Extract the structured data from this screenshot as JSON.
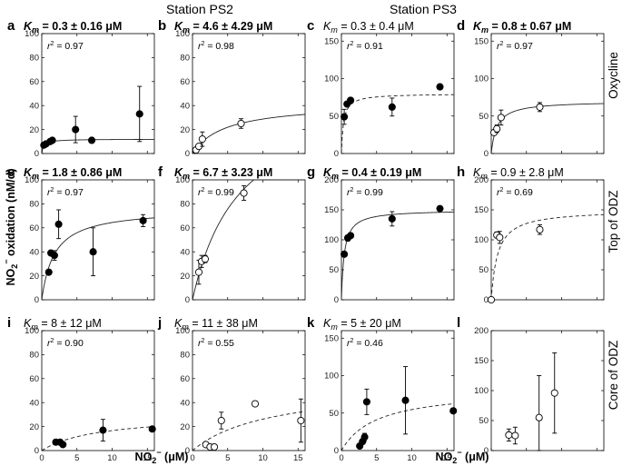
{
  "stations": [
    "Station PS2",
    "Station PS3"
  ],
  "row_labels": [
    "Oxycline",
    "Top of ODZ",
    "Core of ODZ"
  ],
  "ylabel": {
    "main": "NO",
    "sub": "2",
    "sup": "−",
    "rest": " oxidation (nM/d)"
  },
  "xlabel": {
    "main": "NO",
    "sub": "2",
    "sup": "−",
    "rest": " (μM)"
  },
  "chart_data": [
    {
      "id": "a",
      "label": "a",
      "type": "scatter",
      "km_text": "= 0.3 ± 0.16 μM",
      "km_bold": true,
      "r2": "= 0.97",
      "ylim": [
        0,
        100
      ],
      "yticks": [
        0,
        20,
        40,
        60,
        80,
        100
      ],
      "xlim": [
        0,
        16
      ],
      "xticks": [
        0,
        5,
        10,
        15
      ],
      "show_xticks": false,
      "filled": true,
      "fit": {
        "vmax": 12,
        "km": 0.3,
        "style": "solid"
      },
      "points": [
        {
          "x": 0.3,
          "y": 7
        },
        {
          "x": 0.6,
          "y": 8
        },
        {
          "x": 1.2,
          "y": 10,
          "err": 2
        },
        {
          "x": 1.5,
          "y": 11
        },
        {
          "x": 4.8,
          "y": 20,
          "err": 11
        },
        {
          "x": 7.1,
          "y": 11
        },
        {
          "x": 13.9,
          "y": 33,
          "err": 23
        }
      ]
    },
    {
      "id": "b",
      "label": "b",
      "type": "scatter",
      "km_text": "= 4.6 ± 4.29 μM",
      "km_bold": true,
      "r2": "= 0.98",
      "ylim": [
        0,
        100
      ],
      "yticks": [
        0,
        20,
        40,
        60,
        80,
        100
      ],
      "xlim": [
        0,
        16
      ],
      "xticks": [
        0,
        5,
        10,
        15
      ],
      "show_xticks": false,
      "filled": false,
      "fit": {
        "vmax": 42,
        "km": 4.6,
        "style": "solid"
      },
      "points": [
        {
          "x": 0.5,
          "y": 3
        },
        {
          "x": 0.9,
          "y": 6,
          "err": 2
        },
        {
          "x": 1.4,
          "y": 12,
          "err": 6
        },
        {
          "x": 6.9,
          "y": 25,
          "err": 4
        }
      ]
    },
    {
      "id": "c",
      "label": "c",
      "type": "scatter",
      "km_text": "= 0.3 ± 0.4 μM",
      "km_bold": false,
      "r2": "= 0.91",
      "ylim": [
        0,
        160
      ],
      "yticks": [
        0,
        50,
        100,
        150
      ],
      "xlim": [
        0,
        16
      ],
      "xticks": [
        0,
        5,
        10,
        15
      ],
      "show_xticks": false,
      "filled": true,
      "fit": {
        "vmax": 80,
        "km": 0.3,
        "style": "dashed"
      },
      "points": [
        {
          "x": 0.4,
          "y": 49,
          "err": 10
        },
        {
          "x": 0.8,
          "y": 66
        },
        {
          "x": 1.3,
          "y": 71
        },
        {
          "x": 7.2,
          "y": 62,
          "err": 12
        },
        {
          "x": 14.0,
          "y": 89
        }
      ]
    },
    {
      "id": "d",
      "label": "d",
      "type": "scatter",
      "km_text": "= 0.8 ± 0.67 μM",
      "km_bold": true,
      "r2": "= 0.97",
      "ylim": [
        0,
        160
      ],
      "yticks": [
        0,
        50,
        100,
        150
      ],
      "xlim": [
        0,
        16
      ],
      "xticks": [
        0,
        5,
        10,
        15
      ],
      "show_xticks": false,
      "filled": false,
      "fit": {
        "vmax": 70,
        "km": 0.8,
        "style": "solid"
      },
      "points": [
        {
          "x": 0.4,
          "y": 28
        },
        {
          "x": 0.8,
          "y": 33,
          "err": 5
        },
        {
          "x": 1.4,
          "y": 48,
          "err": 10
        },
        {
          "x": 6.9,
          "y": 62,
          "err": 6
        }
      ]
    },
    {
      "id": "e",
      "label": "e",
      "type": "scatter",
      "km_text": "= 1.8 ± 0.86 μM",
      "km_bold": true,
      "r2": "= 0.97",
      "ylim": [
        0,
        100
      ],
      "yticks": [
        0,
        20,
        40,
        60,
        80,
        100
      ],
      "xlim": [
        0,
        16
      ],
      "xticks": [
        0,
        5,
        10,
        15
      ],
      "show_xticks": false,
      "filled": true,
      "fit": {
        "vmax": 76,
        "km": 1.8,
        "style": "solid"
      },
      "points": [
        {
          "x": 1.0,
          "y": 23
        },
        {
          "x": 1.3,
          "y": 39
        },
        {
          "x": 1.8,
          "y": 37,
          "err": 4
        },
        {
          "x": 2.4,
          "y": 63,
          "err": 12
        },
        {
          "x": 7.3,
          "y": 40,
          "err": 20
        },
        {
          "x": 14.4,
          "y": 66,
          "err": 5
        }
      ]
    },
    {
      "id": "f",
      "label": "f",
      "type": "scatter",
      "km_text": "= 6.7 ± 3.23 μM",
      "km_bold": true,
      "r2": "= 0.99",
      "ylim": [
        0,
        100
      ],
      "yticks": [
        0,
        20,
        40,
        60,
        80,
        100
      ],
      "xlim": [
        0,
        16
      ],
      "xticks": [
        0,
        5,
        10,
        15
      ],
      "show_xticks": false,
      "filled": false,
      "fit": {
        "vmax": 177,
        "km": 6.7,
        "style": "solid"
      },
      "points": [
        {
          "x": 0.9,
          "y": 23,
          "err": 10
        },
        {
          "x": 1.3,
          "y": 32,
          "err": 5
        },
        {
          "x": 1.8,
          "y": 34,
          "err": 3
        },
        {
          "x": 7.3,
          "y": 89,
          "err": 6
        }
      ]
    },
    {
      "id": "g",
      "label": "g",
      "type": "scatter",
      "km_text": "= 0.4 ± 0.19 μM",
      "km_bold": true,
      "r2": "= 0.99",
      "ylim": [
        0,
        200
      ],
      "yticks": [
        0,
        50,
        100,
        150,
        200
      ],
      "xlim": [
        0,
        16
      ],
      "xticks": [
        0,
        5,
        10,
        15
      ],
      "show_xticks": false,
      "filled": true,
      "fit": {
        "vmax": 150,
        "km": 0.4,
        "style": "solid"
      },
      "points": [
        {
          "x": 0.4,
          "y": 76
        },
        {
          "x": 0.9,
          "y": 103,
          "err": 5
        },
        {
          "x": 1.3,
          "y": 107
        },
        {
          "x": 7.2,
          "y": 135,
          "err": 12
        },
        {
          "x": 14.0,
          "y": 152
        }
      ]
    },
    {
      "id": "h",
      "label": "h",
      "type": "scatter",
      "km_text": "= 0.9 ± 2.8 μM",
      "km_bold": false,
      "r2": "= 0.69",
      "ylim": [
        0,
        200
      ],
      "yticks": [
        0,
        50,
        100,
        150,
        200
      ],
      "xlim": [
        0,
        16
      ],
      "xticks": [
        0,
        5,
        10,
        15
      ],
      "show_xticks": false,
      "filled": false,
      "fit": {
        "vmax": 150,
        "km": 0.9,
        "style": "dashed"
      },
      "points": [
        {
          "x": 0.0,
          "y": 0
        },
        {
          "x": 0.8,
          "y": 108,
          "err": 5
        },
        {
          "x": 1.2,
          "y": 104,
          "err": 10
        },
        {
          "x": 6.9,
          "y": 117,
          "err": 8
        }
      ]
    },
    {
      "id": "i",
      "label": "i",
      "type": "scatter",
      "km_text": "= 8 ± 12 μM",
      "km_bold": false,
      "r2": "= 0.90",
      "ylim": [
        0,
        100
      ],
      "yticks": [
        0,
        20,
        40,
        60,
        80,
        100
      ],
      "xlim": [
        0,
        16
      ],
      "xticks": [
        0,
        5,
        10,
        15
      ],
      "show_xticks": true,
      "filled": true,
      "fit": {
        "vmax": 30,
        "km": 8,
        "style": "dashed"
      },
      "points": [
        {
          "x": 2.0,
          "y": 7
        },
        {
          "x": 2.6,
          "y": 7
        },
        {
          "x": 3.0,
          "y": 5
        },
        {
          "x": 8.7,
          "y": 17,
          "err": 9
        },
        {
          "x": 15.7,
          "y": 18
        }
      ]
    },
    {
      "id": "j",
      "label": "j",
      "type": "scatter",
      "km_text": "= 11 ± 38 μM",
      "km_bold": false,
      "r2": "= 0.55",
      "ylim": [
        0,
        100
      ],
      "yticks": [
        0,
        20,
        40,
        60,
        80,
        100
      ],
      "xlim": [
        0,
        16
      ],
      "xticks": [
        0,
        5,
        10,
        15
      ],
      "show_xticks": true,
      "filled": false,
      "fit": {
        "vmax": 55,
        "km": 11,
        "style": "dashed"
      },
      "points": [
        {
          "x": 1.9,
          "y": 5
        },
        {
          "x": 2.5,
          "y": 3
        },
        {
          "x": 3.1,
          "y": 3
        },
        {
          "x": 4.1,
          "y": 25,
          "err": 7
        },
        {
          "x": 8.9,
          "y": 39,
          "err": 2
        },
        {
          "x": 15.4,
          "y": 25,
          "err": 18
        }
      ]
    },
    {
      "id": "k",
      "label": "k",
      "type": "scatter",
      "km_text": "= 5 ± 20 μM",
      "km_bold": false,
      "r2": "= 0.46",
      "ylim": [
        0,
        160
      ],
      "yticks": [
        0,
        50,
        100,
        150
      ],
      "xlim": [
        0,
        16
      ],
      "xticks": [
        0,
        5,
        10,
        15
      ],
      "show_xticks": true,
      "filled": true,
      "fit": {
        "vmax": 82,
        "km": 5,
        "style": "dashed"
      },
      "points": [
        {
          "x": 2.6,
          "y": 6
        },
        {
          "x": 3.0,
          "y": 12
        },
        {
          "x": 3.3,
          "y": 18,
          "err": 5
        },
        {
          "x": 3.6,
          "y": 65,
          "err": 17
        },
        {
          "x": 9.1,
          "y": 67,
          "err": 45
        },
        {
          "x": 15.9,
          "y": 53
        }
      ]
    },
    {
      "id": "l",
      "label": "l",
      "type": "scatter",
      "km_text": "",
      "km_bold": false,
      "r2": "",
      "ylim": [
        0,
        200
      ],
      "yticks": [
        0,
        50,
        100,
        150,
        200
      ],
      "xlim": [
        0,
        16
      ],
      "xticks": [
        0,
        5,
        10,
        15
      ],
      "show_xticks": false,
      "filled": false,
      "fit": null,
      "points": [
        {
          "x": 2.5,
          "y": 26,
          "err": 10
        },
        {
          "x": 3.4,
          "y": 25,
          "err": 14
        },
        {
          "x": 6.8,
          "y": 55,
          "err": 70
        },
        {
          "x": 9.0,
          "y": 96,
          "err": 67
        }
      ]
    }
  ]
}
